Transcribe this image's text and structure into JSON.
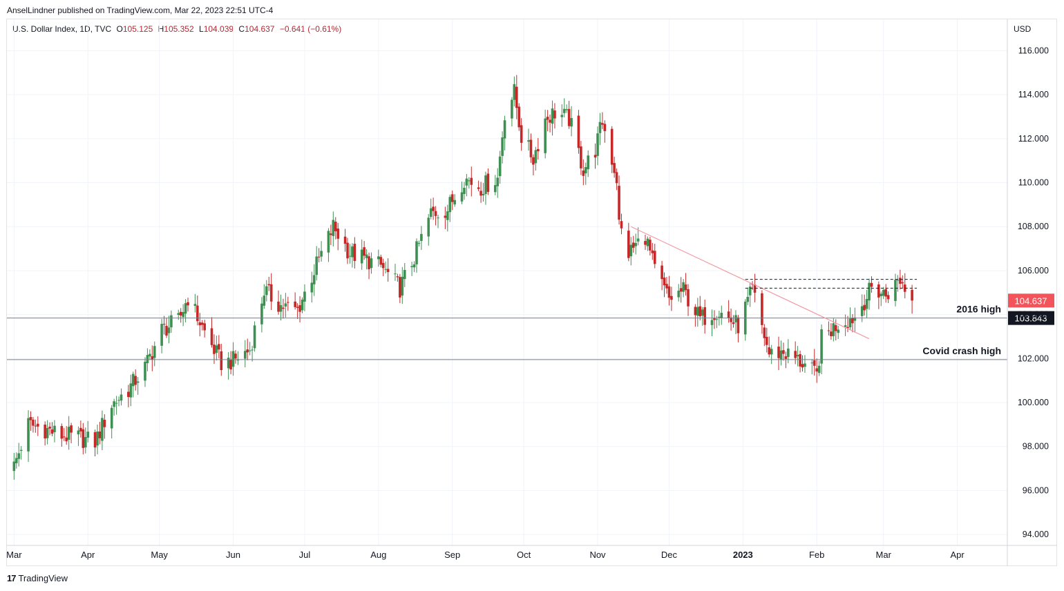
{
  "publisher_line": "AnselLindner published on TradingView.com, Mar 22, 2023 22:51 UTC-4",
  "legend": {
    "symbol": "U.S. Dollar Index, 1D, TVC",
    "o_label": "O",
    "o_value": "105.125",
    "h_label": "H",
    "h_value": "105.352",
    "l_label": "L",
    "l_value": "104.039",
    "c_label": "C",
    "c_value": "104.637",
    "change": "−0.641 (−0.61%)"
  },
  "currency": "USD",
  "brand": "TradingView",
  "colors": {
    "up": "#26a69a",
    "up_body": "#3e8f52",
    "down": "#c62828",
    "grid": "#f0f3fa",
    "level_line": "#787b86",
    "trendline": "#f19aa4",
    "price_tag": "#f2545b",
    "level_tag": "#131722"
  },
  "chart_data": {
    "type": "candlestick",
    "title": "U.S. Dollar Index, 1D, TVC",
    "ylabel": "USD",
    "ylim": [
      93.5,
      116.8
    ],
    "y_ticks": [
      "116.000",
      "114.000",
      "112.000",
      "110.000",
      "108.000",
      "106.000",
      "104.000",
      "102.000",
      "100.000",
      "98.000",
      "96.000",
      "94.000"
    ],
    "x_ticks": [
      {
        "label": "Mar",
        "date": "2022-03-01"
      },
      {
        "label": "Apr",
        "date": "2022-04-01"
      },
      {
        "label": "May",
        "date": "2022-05-01"
      },
      {
        "label": "Jun",
        "date": "2022-06-01"
      },
      {
        "label": "Jul",
        "date": "2022-07-01"
      },
      {
        "label": "Aug",
        "date": "2022-08-01"
      },
      {
        "label": "Sep",
        "date": "2022-09-01"
      },
      {
        "label": "Oct",
        "date": "2022-10-01"
      },
      {
        "label": "Nov",
        "date": "2022-11-01"
      },
      {
        "label": "Dec",
        "date": "2022-12-01"
      },
      {
        "label": "2023",
        "date": "2023-01-01",
        "bold": true
      },
      {
        "label": "Feb",
        "date": "2023-02-01"
      },
      {
        "label": "Mar",
        "date": "2023-03-01"
      },
      {
        "label": "Apr",
        "date": "2023-04-01"
      }
    ],
    "close_path": [
      [
        "2022-03-01",
        97.1
      ],
      [
        "2022-03-07",
        99.0
      ],
      [
        "2022-03-14",
        98.8
      ],
      [
        "2022-03-21",
        98.5
      ],
      [
        "2022-03-28",
        98.4
      ],
      [
        "2022-04-04",
        98.2
      ],
      [
        "2022-04-11",
        99.9
      ],
      [
        "2022-04-18",
        100.6
      ],
      [
        "2022-04-25",
        101.6
      ],
      [
        "2022-05-02",
        103.3
      ],
      [
        "2022-05-09",
        103.7
      ],
      [
        "2022-05-13",
        104.8
      ],
      [
        "2022-05-20",
        103.2
      ],
      [
        "2022-05-27",
        101.8
      ],
      [
        "2022-06-01",
        101.9
      ],
      [
        "2022-06-08",
        102.4
      ],
      [
        "2022-06-14",
        105.1
      ],
      [
        "2022-06-21",
        104.4
      ],
      [
        "2022-06-28",
        104.2
      ],
      [
        "2022-07-05",
        106.0
      ],
      [
        "2022-07-13",
        108.0
      ],
      [
        "2022-07-20",
        106.8
      ],
      [
        "2022-07-27",
        106.5
      ],
      [
        "2022-08-02",
        106.2
      ],
      [
        "2022-08-10",
        105.2
      ],
      [
        "2022-08-16",
        106.6
      ],
      [
        "2022-08-23",
        108.6
      ],
      [
        "2022-08-30",
        108.8
      ],
      [
        "2022-09-06",
        110.2
      ],
      [
        "2022-09-13",
        109.8
      ],
      [
        "2022-09-20",
        110.2
      ],
      [
        "2022-09-23",
        113.2
      ],
      [
        "2022-09-27",
        114.1
      ],
      [
        "2022-09-30",
        112.1
      ],
      [
        "2022-10-05",
        111.1
      ],
      [
        "2022-10-10",
        112.9
      ],
      [
        "2022-10-14",
        113.2
      ],
      [
        "2022-10-20",
        112.9
      ],
      [
        "2022-10-26",
        110.6
      ],
      [
        "2022-10-31",
        111.5
      ],
      [
        "2022-11-03",
        112.8
      ],
      [
        "2022-11-09",
        110.2
      ],
      [
        "2022-11-10",
        108.1
      ],
      [
        "2022-11-14",
        106.8
      ],
      [
        "2022-11-21",
        107.6
      ],
      [
        "2022-11-25",
        106.0
      ],
      [
        "2022-12-01",
        104.7
      ],
      [
        "2022-12-07",
        105.1
      ],
      [
        "2022-12-14",
        103.8
      ],
      [
        "2022-12-21",
        104.2
      ],
      [
        "2022-12-30",
        103.5
      ],
      [
        "2023-01-05",
        105.1
      ],
      [
        "2023-01-12",
        102.2
      ],
      [
        "2023-01-18",
        102.3
      ],
      [
        "2023-01-26",
        101.8
      ],
      [
        "2023-02-01",
        101.2
      ],
      [
        "2023-02-03",
        102.9
      ],
      [
        "2023-02-10",
        103.6
      ],
      [
        "2023-02-17",
        103.9
      ],
      [
        "2023-02-24",
        105.2
      ],
      [
        "2023-03-02",
        104.9
      ],
      [
        "2023-03-08",
        105.6
      ],
      [
        "2023-03-13",
        104.6
      ]
    ],
    "last_close": 104.637,
    "levels": [
      {
        "name": "2016 high",
        "value": 103.843,
        "tag": "103.843"
      },
      {
        "name": "Covid crash high",
        "value": 101.95
      }
    ],
    "price_tag": "104.637",
    "trendline": {
      "start": [
        "2022-11-15",
        108.0
      ],
      "end": [
        "2023-02-23",
        102.9
      ]
    },
    "resistance": [
      {
        "start": "2023-01-02",
        "end": "2023-03-15",
        "value": 105.6
      },
      {
        "start": "2023-01-02",
        "end": "2023-03-15",
        "value": 105.2
      }
    ]
  }
}
